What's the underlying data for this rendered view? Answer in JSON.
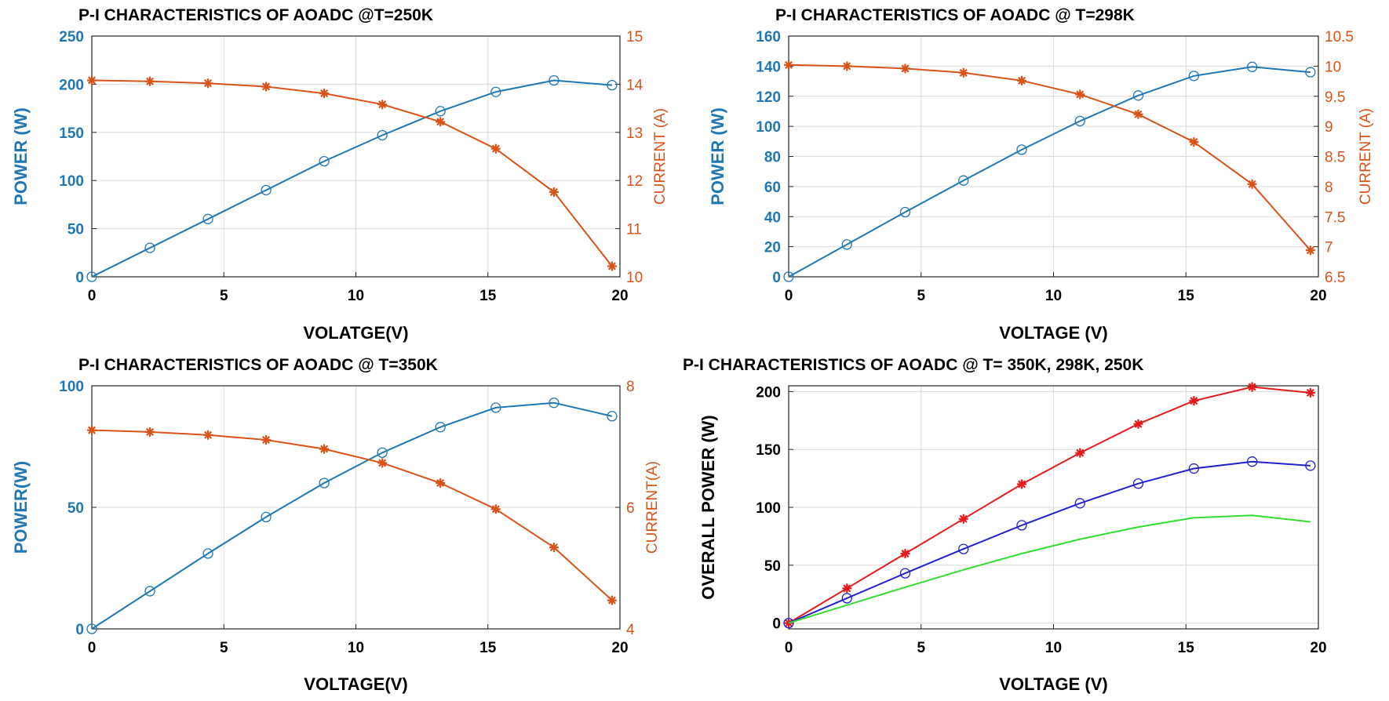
{
  "chart_data": [
    {
      "type": "line",
      "title": "P-I CHARACTERISTICS OF AOADC @T=250K",
      "xlabel": "VOLATGE(V)",
      "ylabel": "POWER (W)",
      "y2label": "CURRENT (A)",
      "xlim": [
        0,
        20
      ],
      "xticks": [
        0,
        5,
        10,
        15,
        20
      ],
      "ylim": [
        0,
        250
      ],
      "yticks": [
        0,
        50,
        100,
        150,
        200,
        250
      ],
      "y2lim": [
        10,
        15
      ],
      "y2ticks": [
        10,
        11,
        12,
        13,
        14,
        15
      ],
      "grid": true,
      "x": [
        0,
        2.2,
        4.4,
        6.6,
        8.8,
        11,
        13.2,
        15.3,
        17.5,
        19.7
      ],
      "series": [
        {
          "axis": "left",
          "color": "#1f77b4",
          "marker": "circle",
          "values": [
            0,
            30,
            60,
            90,
            120,
            147,
            172,
            192,
            204,
            199
          ]
        },
        {
          "axis": "right",
          "color": "#d95319",
          "marker": "star",
          "values": [
            14.08,
            14.06,
            14.02,
            13.95,
            13.81,
            13.58,
            13.22,
            12.66,
            11.76,
            10.22
          ]
        }
      ]
    },
    {
      "type": "line",
      "title": "P-I CHARACTERISTICS OF AOADC @ T=298K",
      "xlabel": "VOLTAGE (V)",
      "ylabel": "POWER (W)",
      "y2label": "CURRENT (A)",
      "xlim": [
        0,
        20
      ],
      "xticks": [
        0,
        5,
        10,
        15,
        20
      ],
      "ylim": [
        0,
        160
      ],
      "yticks": [
        0,
        20,
        40,
        60,
        80,
        100,
        120,
        140,
        160
      ],
      "y2lim": [
        6.5,
        10.5
      ],
      "y2ticks": [
        6.5,
        7,
        7.5,
        8,
        8.5,
        9,
        9.5,
        10,
        10.5
      ],
      "grid": true,
      "x": [
        0,
        2.2,
        4.4,
        6.6,
        8.8,
        11,
        13.2,
        15.3,
        17.5,
        19.7
      ],
      "series": [
        {
          "axis": "left",
          "color": "#1f77b4",
          "marker": "circle",
          "values": [
            0,
            21.5,
            43,
            64,
            84.5,
            103.5,
            120.5,
            133.5,
            139.5,
            136
          ]
        },
        {
          "axis": "right",
          "color": "#d95319",
          "marker": "star",
          "values": [
            10.02,
            10.0,
            9.96,
            9.89,
            9.76,
            9.53,
            9.2,
            8.74,
            8.04,
            6.94
          ]
        }
      ]
    },
    {
      "type": "line",
      "title": "P-I CHARACTERISTICS OF AOADC @ T=350K",
      "xlabel": "VOLTAGE(V)",
      "ylabel": "POWER(W)",
      "y2label": "CURRENT(A)",
      "xlim": [
        0,
        20
      ],
      "xticks": [
        0,
        5,
        10,
        15,
        20
      ],
      "ylim": [
        0,
        100
      ],
      "yticks": [
        0,
        50,
        100
      ],
      "y2lim": [
        4,
        8
      ],
      "y2ticks": [
        4,
        6,
        8
      ],
      "grid": true,
      "x": [
        0,
        2.2,
        4.4,
        6.6,
        8.8,
        11,
        13.2,
        15.3,
        17.5,
        19.7
      ],
      "series": [
        {
          "axis": "left",
          "color": "#1f77b4",
          "marker": "circle",
          "values": [
            0,
            15.5,
            31,
            46,
            60,
            72.5,
            83,
            91,
            93,
            87.5
          ]
        },
        {
          "axis": "right",
          "color": "#d95319",
          "marker": "star",
          "values": [
            7.27,
            7.24,
            7.19,
            7.11,
            6.96,
            6.73,
            6.4,
            5.97,
            5.34,
            4.47
          ]
        }
      ]
    },
    {
      "type": "line",
      "title": "P-I CHARACTERISTICS OF AOADC @ T= 350K, 298K, 250K",
      "xlabel": "VOLTAGE (V)",
      "ylabel": "OVERALL POWER (W)",
      "xlim": [
        0,
        20
      ],
      "xticks": [
        0,
        5,
        10,
        15,
        20
      ],
      "ylim": [
        -5,
        205
      ],
      "yticks": [
        0,
        50,
        100,
        150,
        200
      ],
      "grid": true,
      "x": [
        0,
        2.2,
        4.4,
        6.6,
        8.8,
        11,
        13.2,
        15.3,
        17.5,
        19.7
      ],
      "series": [
        {
          "axis": "left",
          "color": "#e41a1c",
          "marker": "star",
          "values": [
            0,
            30,
            60,
            90,
            120,
            147,
            172,
            192,
            204,
            199
          ]
        },
        {
          "axis": "left",
          "color": "#2222cc",
          "marker": "circle",
          "values": [
            0,
            21.5,
            43,
            64,
            84.5,
            103.5,
            120.5,
            133.5,
            139.5,
            136
          ]
        },
        {
          "axis": "left",
          "color": "#33dd33",
          "marker": "none",
          "values": [
            0,
            15.5,
            31,
            46,
            60,
            72.5,
            83,
            91,
            93,
            87.5
          ]
        }
      ]
    }
  ]
}
